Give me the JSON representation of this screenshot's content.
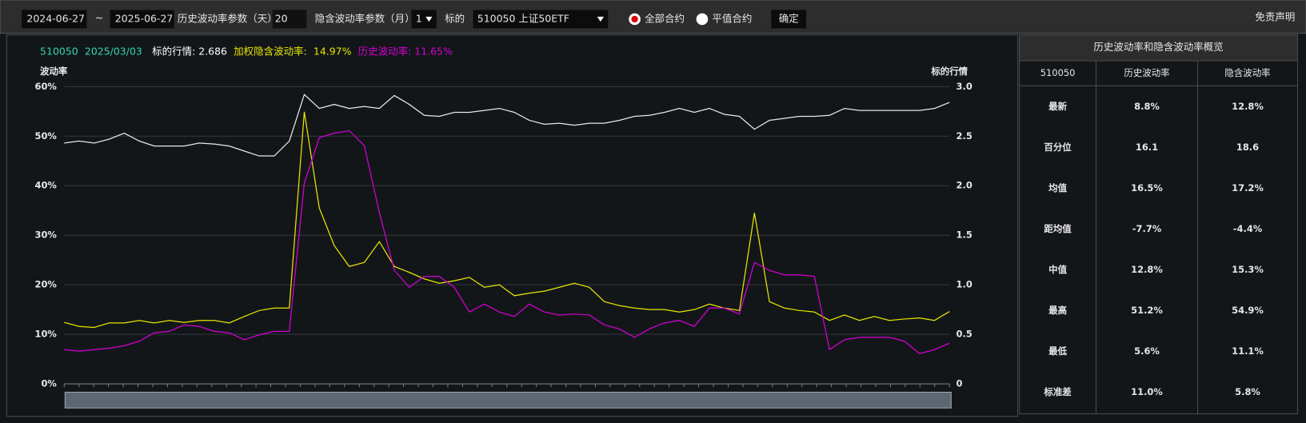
{
  "toolbar": {
    "start_date": "2024-06-27",
    "separator": "~",
    "end_date": "2025-06-27",
    "hv_param_label": "历史波动率参数（天）",
    "hv_param": "20",
    "iv_param_label": "隐含波动率参数（月）",
    "iv_param": "1",
    "underlying_label": "标的",
    "underlying": "510050 上证50ETF",
    "radio_all": "全部合约",
    "radio_atm": "平值合约",
    "confirm": "确定",
    "disclaimer": "免责声明"
  },
  "tooltip": {
    "code": "510050",
    "date": "2025/03/03",
    "price_label": "标的行情:",
    "price": "2.686",
    "iv_label": "加权隐含波动率:",
    "iv": "14.97%",
    "hv_label": "历史波动率:",
    "hv": "11.65%"
  },
  "chart_data": {
    "type": "line",
    "y_label": "波动率",
    "y2_label": "标的行情",
    "ylim": [
      0,
      60
    ],
    "yticks": [
      {
        "value": 0,
        "label": "0%"
      },
      {
        "value": 10,
        "label": "10%"
      },
      {
        "value": 20,
        "label": "20%"
      },
      {
        "value": 30,
        "label": "30%"
      },
      {
        "value": 40,
        "label": "40%"
      },
      {
        "value": 50,
        "label": "50%"
      },
      {
        "value": 60,
        "label": "60%"
      }
    ],
    "y2lim": [
      0,
      3
    ],
    "y2ticks": [
      0,
      0.5,
      {
        "value": 1,
        "label": "1.0"
      },
      1.5,
      {
        "value": 2,
        "label": "2.0"
      },
      2.5,
      {
        "value": 3,
        "label": "3.0"
      }
    ],
    "grid": true,
    "series": [
      {
        "color": "#e8e8e8",
        "axis": "y2",
        "values": [
          2.43,
          2.45,
          2.43,
          2.47,
          2.53,
          2.45,
          2.4,
          2.4,
          2.4,
          2.43,
          2.42,
          2.4,
          2.35,
          2.3,
          2.3,
          2.45,
          2.92,
          2.78,
          2.82,
          2.78,
          2.8,
          2.78,
          2.91,
          2.82,
          2.71,
          2.7,
          2.74,
          2.74,
          2.76,
          2.78,
          2.74,
          2.66,
          2.62,
          2.63,
          2.61,
          2.63,
          2.63,
          2.66,
          2.7,
          2.71,
          2.74,
          2.78,
          2.74,
          2.78,
          2.72,
          2.7,
          2.57,
          2.66,
          2.68,
          2.7,
          2.7,
          2.71,
          2.78,
          2.76,
          2.76,
          2.76,
          2.76,
          2.76,
          2.78,
          2.84
        ]
      },
      {
        "color": "#e6e600",
        "values": [
          12.4,
          11.6,
          11.4,
          12.3,
          12.3,
          12.8,
          12.3,
          12.8,
          12.4,
          12.8,
          12.8,
          12.3,
          13.6,
          14.8,
          15.3,
          15.3,
          54.9,
          35.5,
          27.9,
          23.7,
          24.5,
          28.7,
          23.7,
          22.5,
          21.2,
          20.3,
          20.8,
          21.5,
          19.5,
          20,
          17.8,
          18.3,
          18.7,
          19.5,
          20.3,
          19.5,
          16.6,
          15.8,
          15.3,
          15,
          15,
          14.5,
          15,
          16.1,
          15.3,
          14.8,
          34.5,
          16.6,
          15.3,
          14.8,
          14.5,
          12.8,
          13.9,
          12.8,
          13.6,
          12.8,
          13.1,
          13.3,
          12.8,
          14.6
        ]
      },
      {
        "color": "#d400d4",
        "values": [
          6.9,
          6.6,
          6.9,
          7.2,
          7.7,
          8.6,
          10.3,
          10.6,
          11.9,
          11.6,
          10.6,
          10.3,
          8.9,
          9.9,
          10.6,
          10.6,
          40.5,
          49.7,
          50.6,
          51.1,
          48.1,
          34.6,
          22.9,
          19.5,
          21.7,
          21.7,
          19.5,
          14.5,
          16.1,
          14.5,
          13.6,
          16.1,
          14.5,
          13.9,
          14.1,
          13.9,
          11.9,
          11.1,
          9.4,
          11.1,
          12.3,
          12.8,
          11.6,
          15.3,
          15.3,
          14.1,
          24.5,
          22.9,
          22,
          22,
          21.7,
          6.9,
          8.9,
          9.4,
          9.4,
          9.4,
          8.6,
          6.1,
          6.9,
          8.2
        ]
      }
    ]
  },
  "summary": {
    "title": "历史波动率和隐含波动率概览",
    "header": [
      "510050",
      "历史波动率",
      "隐含波动率"
    ],
    "rows": [
      [
        "最新",
        "8.8%",
        "12.8%"
      ],
      [
        "百分位",
        "16.1",
        "18.6"
      ],
      [
        "均值",
        "16.5%",
        "17.2%"
      ],
      [
        "距均值",
        "-7.7%",
        "-4.4%"
      ],
      [
        "中值",
        "12.8%",
        "15.3%"
      ],
      [
        "最高",
        "51.2%",
        "54.9%"
      ],
      [
        "最低",
        "5.6%",
        "11.1%"
      ],
      [
        "标准差",
        "11.0%",
        "5.8%"
      ]
    ]
  }
}
